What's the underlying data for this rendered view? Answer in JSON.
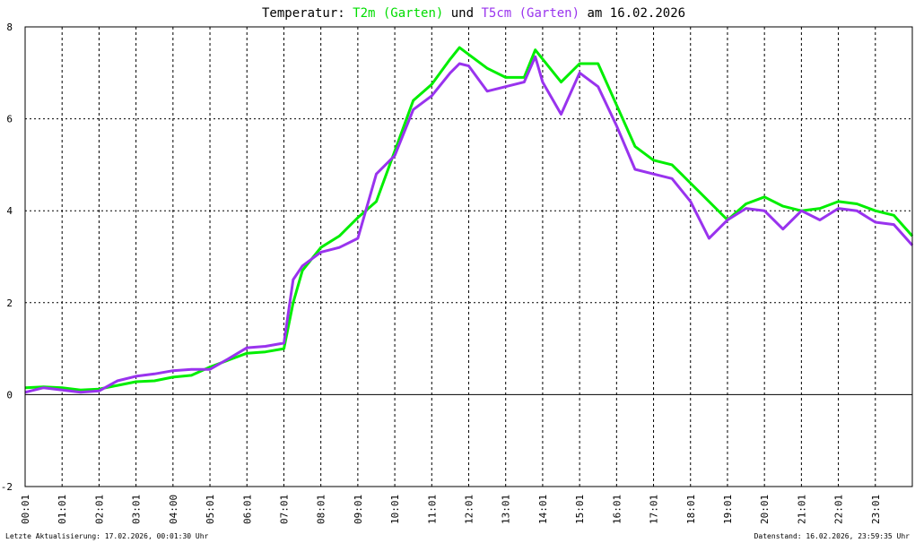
{
  "title": {
    "prefix": "Temperatur: ",
    "series1": "T2m (Garten)",
    "mid": " und ",
    "series2": "T5cm (Garten)",
    "suffix": " am 16.02.2026"
  },
  "footer": {
    "left": "Letzte Aktualisierung: 17.02.2026, 00:01:30 Uhr",
    "right": "Datenstand: 16.02.2026, 23:59:35 Uhr"
  },
  "chart_data": {
    "type": "line",
    "title": "Temperatur: T2m (Garten) und T5cm (Garten) am 16.02.2026",
    "xlabel": "",
    "ylabel": "",
    "xlim": [
      0,
      24
    ],
    "ylim": [
      -2,
      8
    ],
    "yticks": [
      -2,
      0,
      2,
      4,
      6,
      8
    ],
    "xticks": [
      "00:01",
      "01:01",
      "02:01",
      "03:01",
      "04:00",
      "05:01",
      "06:01",
      "07:01",
      "08:01",
      "09:01",
      "10:01",
      "11:01",
      "12:01",
      "13:01",
      "14:01",
      "15:01",
      "16:01",
      "17:01",
      "18:01",
      "19:01",
      "20:01",
      "21:01",
      "22:01",
      "23:01"
    ],
    "grid": true,
    "colors": {
      "T2m": "#00ee00",
      "T5cm": "#9933ee",
      "zero_line": "#000000",
      "grid": "#000000"
    },
    "series": [
      {
        "name": "T2m (Garten)",
        "x": [
          0,
          0.5,
          1,
          1.5,
          2,
          2.5,
          3,
          3.5,
          4,
          4.5,
          5,
          5.5,
          6,
          6.5,
          7,
          7.25,
          7.5,
          8,
          8.5,
          9,
          9.5,
          10,
          10.5,
          11,
          11.5,
          11.75,
          12,
          12.5,
          13,
          13.5,
          13.8,
          14,
          14.5,
          15,
          15.5,
          16,
          16.5,
          17,
          17.5,
          18,
          18.5,
          19,
          19.5,
          20,
          20.5,
          21,
          21.5,
          22,
          22.5,
          23,
          23.5,
          24
        ],
        "values": [
          0.15,
          0.17,
          0.15,
          0.1,
          0.12,
          0.2,
          0.28,
          0.3,
          0.38,
          0.42,
          0.6,
          0.75,
          0.9,
          0.93,
          1.0,
          2.0,
          2.7,
          3.2,
          3.45,
          3.85,
          4.2,
          5.3,
          6.4,
          6.75,
          7.3,
          7.55,
          7.4,
          7.1,
          6.9,
          6.9,
          7.5,
          7.3,
          6.8,
          7.2,
          7.2,
          6.3,
          5.4,
          5.1,
          5.0,
          4.6,
          4.2,
          3.8,
          4.15,
          4.3,
          4.1,
          4.0,
          4.05,
          4.2,
          4.15,
          4.0,
          3.9,
          3.45
        ]
      },
      {
        "name": "T5cm (Garten)",
        "x": [
          0,
          0.5,
          1,
          1.5,
          2,
          2.5,
          3,
          3.5,
          4,
          4.5,
          5,
          5.5,
          6,
          6.5,
          7,
          7.25,
          7.5,
          8,
          8.5,
          9,
          9.5,
          10,
          10.5,
          11,
          11.5,
          11.75,
          12,
          12.5,
          13,
          13.5,
          13.8,
          14,
          14.5,
          15,
          15.5,
          16,
          16.5,
          17,
          17.5,
          18,
          18.5,
          19,
          19.5,
          20,
          20.5,
          21,
          21.5,
          22,
          22.5,
          23,
          23.5,
          24
        ],
        "values": [
          0.05,
          0.15,
          0.1,
          0.05,
          0.08,
          0.3,
          0.4,
          0.45,
          0.52,
          0.55,
          0.55,
          0.78,
          1.02,
          1.05,
          1.12,
          2.5,
          2.8,
          3.1,
          3.2,
          3.4,
          4.8,
          5.2,
          6.2,
          6.5,
          7.0,
          7.2,
          7.15,
          6.6,
          6.7,
          6.8,
          7.35,
          6.8,
          6.1,
          7.0,
          6.7,
          5.85,
          4.9,
          4.8,
          4.7,
          4.2,
          3.4,
          3.8,
          4.05,
          4.0,
          3.6,
          4.0,
          3.8,
          4.05,
          4.0,
          3.75,
          3.7,
          3.25
        ]
      }
    ]
  }
}
